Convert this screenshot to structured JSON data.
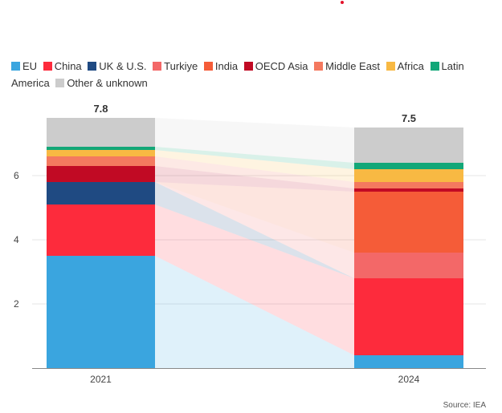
{
  "chart_data": {
    "type": "bar",
    "stacked": true,
    "categories": [
      "2021",
      "2024"
    ],
    "totals": [
      "7.8",
      "7.5"
    ],
    "ylim": [
      0,
      7.8
    ],
    "y_ticks": [
      2,
      4,
      6
    ],
    "y_tick_labels": [
      "2",
      "4",
      "6"
    ],
    "series": [
      {
        "name": "EU",
        "color": "#3aa5df",
        "values": [
          3.5,
          0.4
        ]
      },
      {
        "name": "China",
        "color": "#fd2b3c",
        "values": [
          1.6,
          2.4
        ]
      },
      {
        "name": "UK & U.S.",
        "color": "#1f4a82",
        "values": [
          0.7,
          0.0
        ]
      },
      {
        "name": "Turkiye",
        "color": "#f36868",
        "values": [
          0.0,
          0.8
        ]
      },
      {
        "name": "India",
        "color": "#f55c38",
        "values": [
          0.0,
          1.9
        ]
      },
      {
        "name": "OECD Asia",
        "color": "#c10a24",
        "values": [
          0.5,
          0.1
        ]
      },
      {
        "name": "Middle East",
        "color": "#f4795f",
        "values": [
          0.3,
          0.2
        ]
      },
      {
        "name": "Africa",
        "color": "#f8b943",
        "values": [
          0.2,
          0.4
        ]
      },
      {
        "name": "Latin America",
        "color": "#12a778",
        "values": [
          0.1,
          0.2
        ]
      },
      {
        "name": "Other & unknown",
        "color": "#cccccc",
        "values": [
          0.9,
          1.1
        ]
      }
    ],
    "legend": [
      "EU",
      "China",
      "UK & U.S.",
      "Turkiye",
      "India",
      "OECD Asia",
      "Middle East",
      "Africa",
      "Latin",
      "America",
      "Other & unknown"
    ],
    "source": "Source: IEA"
  }
}
